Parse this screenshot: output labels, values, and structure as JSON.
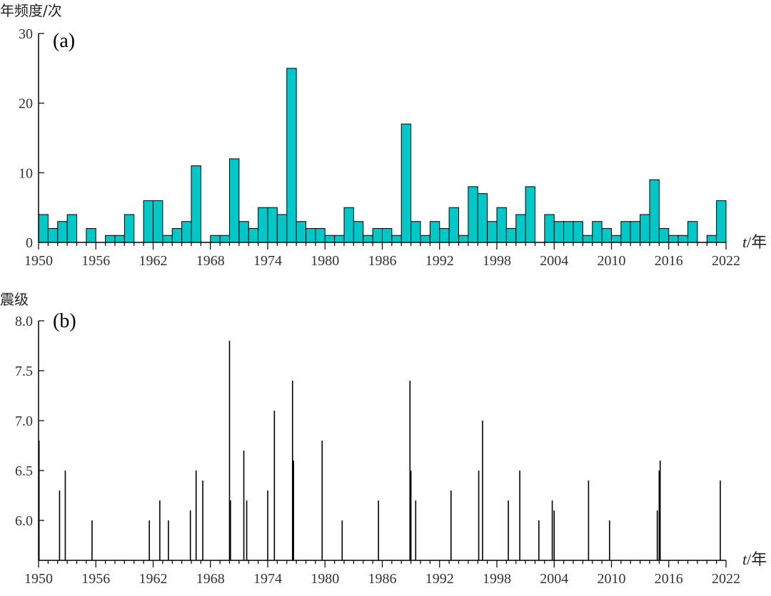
{
  "chart_data": [
    {
      "type": "bar",
      "panel_label": "(a)",
      "ylabel": "年频度/次",
      "xlabel": "t/年",
      "xlabel_italic": "t",
      "xlabel_unit": "/年",
      "bar_color": "#00C8C8",
      "xlim": [
        1950,
        2022
      ],
      "ylim": [
        0,
        30
      ],
      "yticks": [
        0,
        10,
        20,
        30
      ],
      "xticks": [
        1950,
        1956,
        1962,
        1968,
        1974,
        1980,
        1986,
        1992,
        1998,
        2004,
        2010,
        2016,
        2022
      ],
      "x": [
        1950,
        1951,
        1952,
        1953,
        1954,
        1955,
        1956,
        1957,
        1958,
        1959,
        1960,
        1961,
        1962,
        1963,
        1964,
        1965,
        1966,
        1967,
        1968,
        1969,
        1970,
        1971,
        1972,
        1973,
        1974,
        1975,
        1976,
        1977,
        1978,
        1979,
        1980,
        1981,
        1982,
        1983,
        1984,
        1985,
        1986,
        1987,
        1988,
        1989,
        1990,
        1991,
        1992,
        1993,
        1994,
        1995,
        1996,
        1997,
        1998,
        1999,
        2000,
        2001,
        2002,
        2003,
        2004,
        2005,
        2006,
        2007,
        2008,
        2009,
        2010,
        2011,
        2012,
        2013,
        2014,
        2015,
        2016,
        2017,
        2018,
        2019,
        2020,
        2021
      ],
      "values": [
        4,
        2,
        3,
        4,
        0,
        2,
        0,
        1,
        1,
        4,
        0,
        6,
        6,
        1,
        2,
        3,
        11,
        0,
        1,
        1,
        12,
        3,
        2,
        5,
        5,
        4,
        25,
        3,
        2,
        2,
        1,
        1,
        5,
        3,
        1,
        2,
        2,
        1,
        17,
        3,
        1,
        3,
        2,
        5,
        1,
        8,
        7,
        3,
        5,
        2,
        4,
        8,
        0,
        4,
        3,
        3,
        3,
        1,
        3,
        2,
        1,
        3,
        3,
        4,
        9,
        2,
        1,
        1,
        3,
        0,
        1,
        6
      ]
    },
    {
      "type": "stem",
      "panel_label": "(b)",
      "ylabel": "震级",
      "xlabel": "t/年",
      "xlabel_italic": "t",
      "xlabel_unit": "/年",
      "xlim": [
        1950,
        2022
      ],
      "ylim": [
        5.6,
        8.0
      ],
      "yticks": [
        "6.0",
        "6.5",
        "7.0",
        "7.5",
        "8.0"
      ],
      "xticks": [
        1950,
        1956,
        1962,
        1968,
        1974,
        1980,
        1986,
        1992,
        1998,
        2004,
        2010,
        2016,
        2022
      ],
      "points": [
        {
          "t": 1950.05,
          "m": 6.8
        },
        {
          "t": 1952.2,
          "m": 6.3
        },
        {
          "t": 1952.8,
          "m": 6.5
        },
        {
          "t": 1955.6,
          "m": 6.0
        },
        {
          "t": 1961.6,
          "m": 6.0
        },
        {
          "t": 1962.7,
          "m": 6.2
        },
        {
          "t": 1963.6,
          "m": 6.0
        },
        {
          "t": 1965.9,
          "m": 6.1
        },
        {
          "t": 1966.5,
          "m": 6.5
        },
        {
          "t": 1967.2,
          "m": 6.4
        },
        {
          "t": 1970.0,
          "m": 7.8
        },
        {
          "t": 1970.1,
          "m": 6.2
        },
        {
          "t": 1971.5,
          "m": 6.7
        },
        {
          "t": 1971.8,
          "m": 6.2
        },
        {
          "t": 1974.0,
          "m": 6.3
        },
        {
          "t": 1974.7,
          "m": 7.1
        },
        {
          "t": 1976.6,
          "m": 7.4
        },
        {
          "t": 1976.7,
          "m": 6.6
        },
        {
          "t": 1979.7,
          "m": 6.8
        },
        {
          "t": 1981.8,
          "m": 6.0
        },
        {
          "t": 1985.6,
          "m": 6.2
        },
        {
          "t": 1988.9,
          "m": 7.4
        },
        {
          "t": 1989.0,
          "m": 6.5
        },
        {
          "t": 1989.5,
          "m": 6.2
        },
        {
          "t": 1993.2,
          "m": 6.3
        },
        {
          "t": 1996.1,
          "m": 6.5
        },
        {
          "t": 1996.5,
          "m": 7.0
        },
        {
          "t": 1999.2,
          "m": 6.2
        },
        {
          "t": 2000.4,
          "m": 6.5
        },
        {
          "t": 2002.4,
          "m": 6.0
        },
        {
          "t": 2003.8,
          "m": 6.2
        },
        {
          "t": 2004.0,
          "m": 6.1
        },
        {
          "t": 2007.6,
          "m": 6.4
        },
        {
          "t": 2009.8,
          "m": 6.0
        },
        {
          "t": 2014.8,
          "m": 6.1
        },
        {
          "t": 2015.0,
          "m": 6.5
        },
        {
          "t": 2015.1,
          "m": 6.6
        },
        {
          "t": 2021.4,
          "m": 6.4
        }
      ]
    }
  ]
}
